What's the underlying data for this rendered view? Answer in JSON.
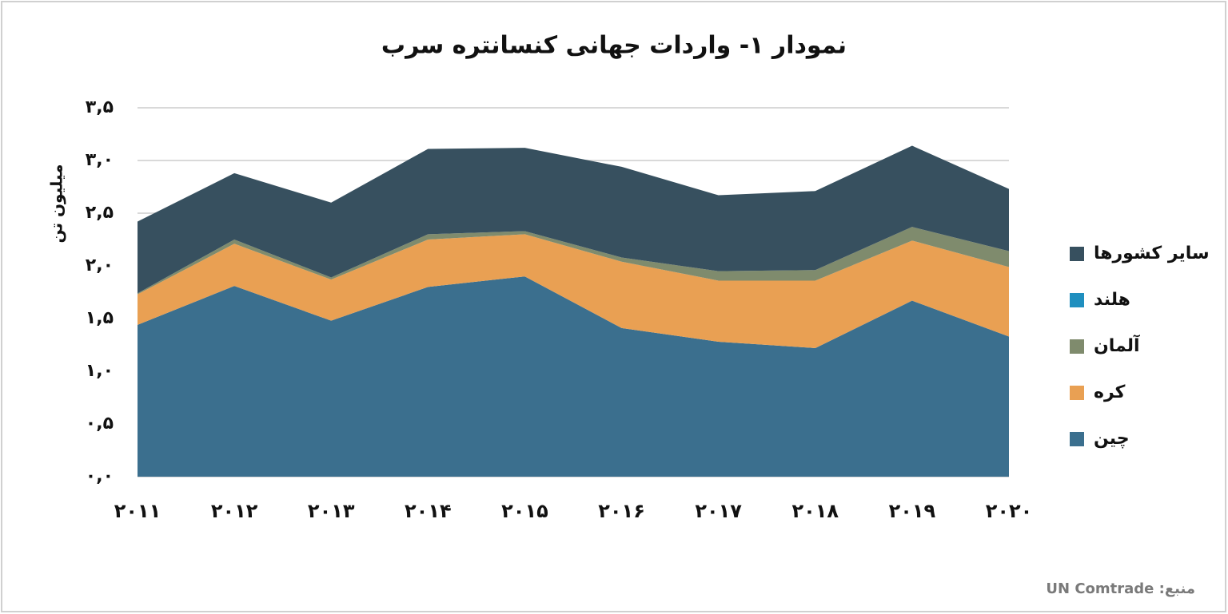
{
  "chart_data": {
    "type": "stacked-area",
    "title": "نمودار ۱- واردات جهانی کنسانتره سرب",
    "y_label": "میلیون تن",
    "source": "منبع: UN Comtrade",
    "categories": [
      "۲۰۱۱",
      "۲۰۱۲",
      "۲۰۱۳",
      "۲۰۱۴",
      "۲۰۱۵",
      "۲۰۱۶",
      "۲۰۱۷",
      "۲۰۱۸",
      "۲۰۱۹",
      "۲۰۲۰"
    ],
    "series": [
      {
        "name": "چین",
        "color": "#3b6f8e",
        "values": [
          1.44,
          1.81,
          1.48,
          1.8,
          1.9,
          1.41,
          1.28,
          1.22,
          1.67,
          1.33
        ]
      },
      {
        "name": "کره",
        "color": "#e9a053",
        "values": [
          0.29,
          0.4,
          0.39,
          0.45,
          0.4,
          0.63,
          0.58,
          0.64,
          0.57,
          0.66
        ]
      },
      {
        "name": "آلمان",
        "color": "#7f8b6d",
        "values": [
          0.01,
          0.04,
          0.02,
          0.05,
          0.03,
          0.04,
          0.09,
          0.1,
          0.13,
          0.15
        ]
      },
      {
        "name": "هلند",
        "color": "#1f8fbf",
        "values": [
          0,
          0,
          0,
          0,
          0,
          0,
          0,
          0,
          0,
          0
        ]
      },
      {
        "name": "سایر کشورها",
        "color": "#37505f",
        "values": [
          0.68,
          0.63,
          0.71,
          0.81,
          0.79,
          0.86,
          0.72,
          0.75,
          0.77,
          0.59
        ]
      }
    ],
    "ylim": [
      0,
      3.5
    ],
    "yticks": [
      {
        "value": 0,
        "label": "۰,۰"
      },
      {
        "value": 0.5,
        "label": "۰,۵"
      },
      {
        "value": 1,
        "label": "۱,۰"
      },
      {
        "value": 1.5,
        "label": "۱,۵"
      },
      {
        "value": 2,
        "label": "۲,۰"
      },
      {
        "value": 2.5,
        "label": "۲,۵"
      },
      {
        "value": 3,
        "label": "۳,۰"
      },
      {
        "value": 3.5,
        "label": "۳,۵"
      }
    ],
    "grid": true,
    "legend": "right"
  }
}
